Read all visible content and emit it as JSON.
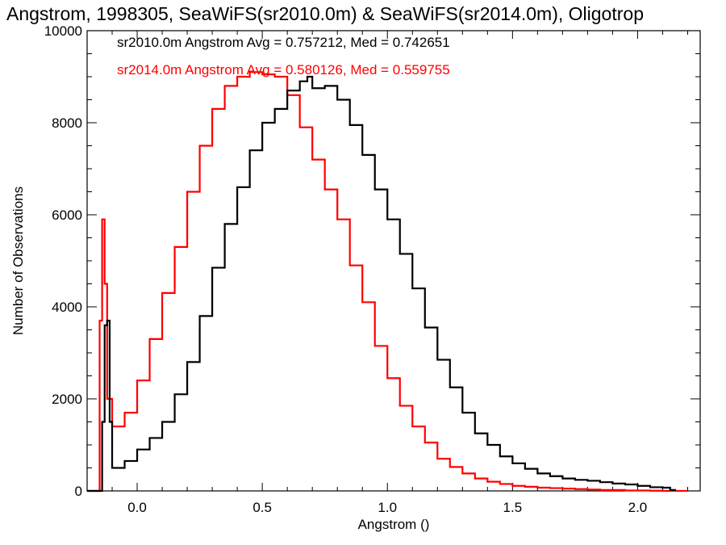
{
  "chart_data": {
    "type": "line",
    "title": "Angstrom, 1998305, SeaWiFS(sr2010.0m) & SeaWiFS(sr2014.0m), Oligotrop",
    "xlabel": "Angstrom ()",
    "ylabel": "Number of Observations",
    "xlim": [
      -0.2,
      2.25
    ],
    "ylim": [
      0,
      10000
    ],
    "xticks": [
      "0.0",
      "0.5",
      "1.0",
      "1.5",
      "2.0"
    ],
    "xtick_values": [
      0.0,
      0.5,
      1.0,
      1.5,
      2.0
    ],
    "yticks": [
      "0",
      "2000",
      "4000",
      "6000",
      "8000",
      "10000"
    ],
    "ytick_values": [
      0,
      2000,
      4000,
      6000,
      8000,
      10000
    ],
    "annotations": [
      {
        "text": "sr2010.0m Angstrom Avg = 0.757212, Med = 0.742651",
        "color": "#000000"
      },
      {
        "text": "sr2014.0m Angstrom Avg = 0.580126, Med = 0.559755",
        "color": "#ff0000"
      }
    ],
    "series": [
      {
        "name": "sr2010.0m",
        "color": "#000000",
        "style": "step",
        "x": [
          -0.2,
          -0.15,
          -0.14,
          -0.13,
          -0.12,
          -0.11,
          -0.1,
          -0.05,
          0.0,
          0.05,
          0.1,
          0.15,
          0.2,
          0.25,
          0.3,
          0.35,
          0.4,
          0.45,
          0.5,
          0.55,
          0.6,
          0.65,
          0.68,
          0.7,
          0.75,
          0.8,
          0.85,
          0.9,
          0.95,
          1.0,
          1.05,
          1.1,
          1.15,
          1.2,
          1.25,
          1.3,
          1.35,
          1.4,
          1.45,
          1.5,
          1.55,
          1.6,
          1.65,
          1.7,
          1.75,
          1.8,
          1.85,
          1.9,
          1.95,
          2.0,
          2.05,
          2.1,
          2.13,
          2.15
        ],
        "values": [
          0,
          0,
          1500,
          3600,
          3700,
          1500,
          500,
          650,
          900,
          1150,
          1500,
          2100,
          2800,
          3800,
          4850,
          5800,
          6600,
          7400,
          8000,
          8300,
          8700,
          8900,
          9000,
          8750,
          8800,
          8500,
          7950,
          7300,
          6550,
          5900,
          5150,
          4400,
          3550,
          2850,
          2250,
          1700,
          1250,
          1000,
          750,
          600,
          480,
          380,
          320,
          270,
          240,
          220,
          190,
          160,
          140,
          110,
          80,
          70,
          20,
          0
        ]
      },
      {
        "name": "sr2014.0m",
        "color": "#ff0000",
        "style": "step",
        "x": [
          -0.2,
          -0.16,
          -0.15,
          -0.14,
          -0.13,
          -0.12,
          -0.1,
          -0.05,
          0.0,
          0.05,
          0.1,
          0.15,
          0.2,
          0.25,
          0.3,
          0.35,
          0.4,
          0.45,
          0.5,
          0.55,
          0.6,
          0.65,
          0.7,
          0.75,
          0.8,
          0.85,
          0.9,
          0.95,
          1.0,
          1.05,
          1.1,
          1.15,
          1.2,
          1.25,
          1.3,
          1.35,
          1.4,
          1.45,
          1.5,
          1.55,
          1.6,
          1.65,
          1.7,
          1.75,
          1.8,
          1.85,
          1.9,
          1.95,
          2.0,
          2.05,
          2.1,
          2.15,
          2.2
        ],
        "values": [
          0,
          0,
          3700,
          5900,
          4500,
          2000,
          1400,
          1700,
          2400,
          3300,
          4300,
          5300,
          6500,
          7500,
          8300,
          8800,
          9000,
          9100,
          9050,
          9000,
          8600,
          7900,
          7200,
          6550,
          5900,
          4900,
          4100,
          3150,
          2450,
          1850,
          1400,
          1050,
          700,
          520,
          380,
          270,
          200,
          150,
          110,
          90,
          70,
          60,
          50,
          40,
          30,
          20,
          20,
          10,
          10,
          5,
          0,
          0,
          0
        ]
      }
    ],
    "grid": false,
    "legend": "none"
  }
}
